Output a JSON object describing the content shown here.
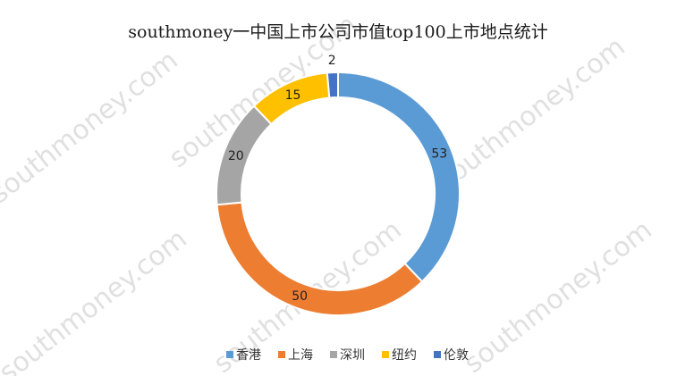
{
  "chart_data": {
    "type": "pie",
    "variant": "doughnut",
    "title": "southmoney一中国上市公司市值top100上市地点统计",
    "categories": [
      "香港",
      "上海",
      "深圳",
      "纽约",
      "伦敦"
    ],
    "values": [
      53,
      50,
      20,
      15,
      2
    ],
    "colors": [
      "#5b9bd5",
      "#ed7d31",
      "#a5a5a5",
      "#ffc000",
      "#4472c4"
    ],
    "data_labels": [
      "53",
      "50",
      "20",
      "15",
      "2"
    ],
    "legend_position": "bottom",
    "watermark": "southmoney.com"
  }
}
